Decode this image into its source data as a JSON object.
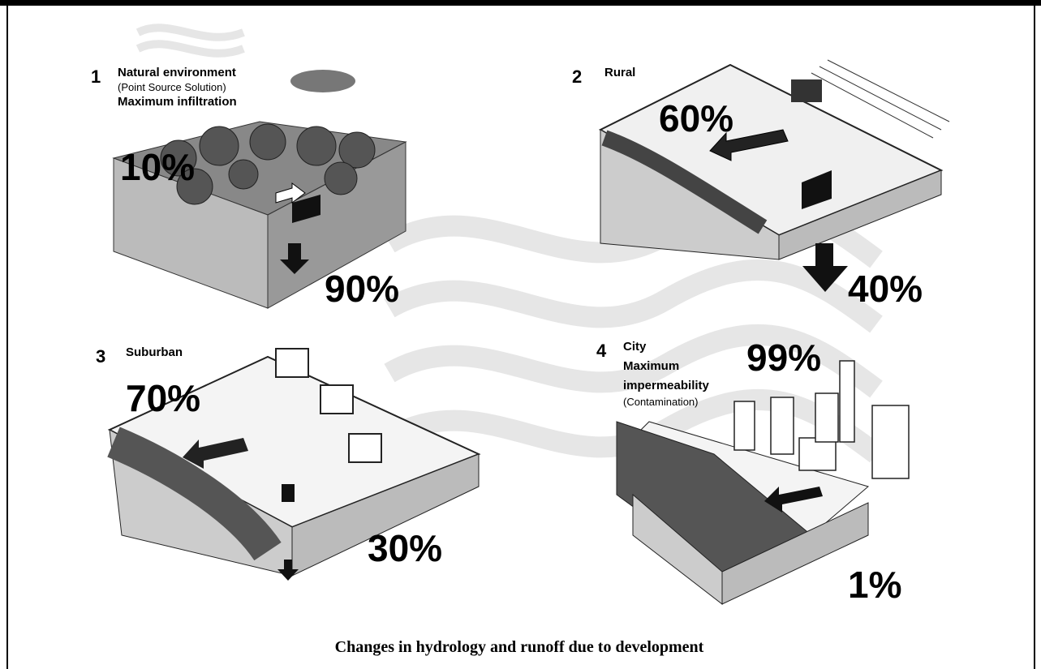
{
  "panels": [
    {
      "number": "1",
      "lines": [
        "Natural environment",
        "(Point Source Solution)",
        "Maximum infiltration"
      ],
      "runoff": "10%",
      "infiltration": "90%"
    },
    {
      "number": "2",
      "lines": [
        "Rural"
      ],
      "runoff": "60%",
      "infiltration": "40%"
    },
    {
      "number": "3",
      "lines": [
        "Suburban"
      ],
      "runoff": "70%",
      "infiltration": "30%"
    },
    {
      "number": "4",
      "lines": [
        "City",
        "Maximum",
        "impermeability",
        "(Contamination)"
      ],
      "runoff": "99%",
      "infiltration": "1%"
    }
  ],
  "caption": "Changes in hydrology and runoff due to development"
}
